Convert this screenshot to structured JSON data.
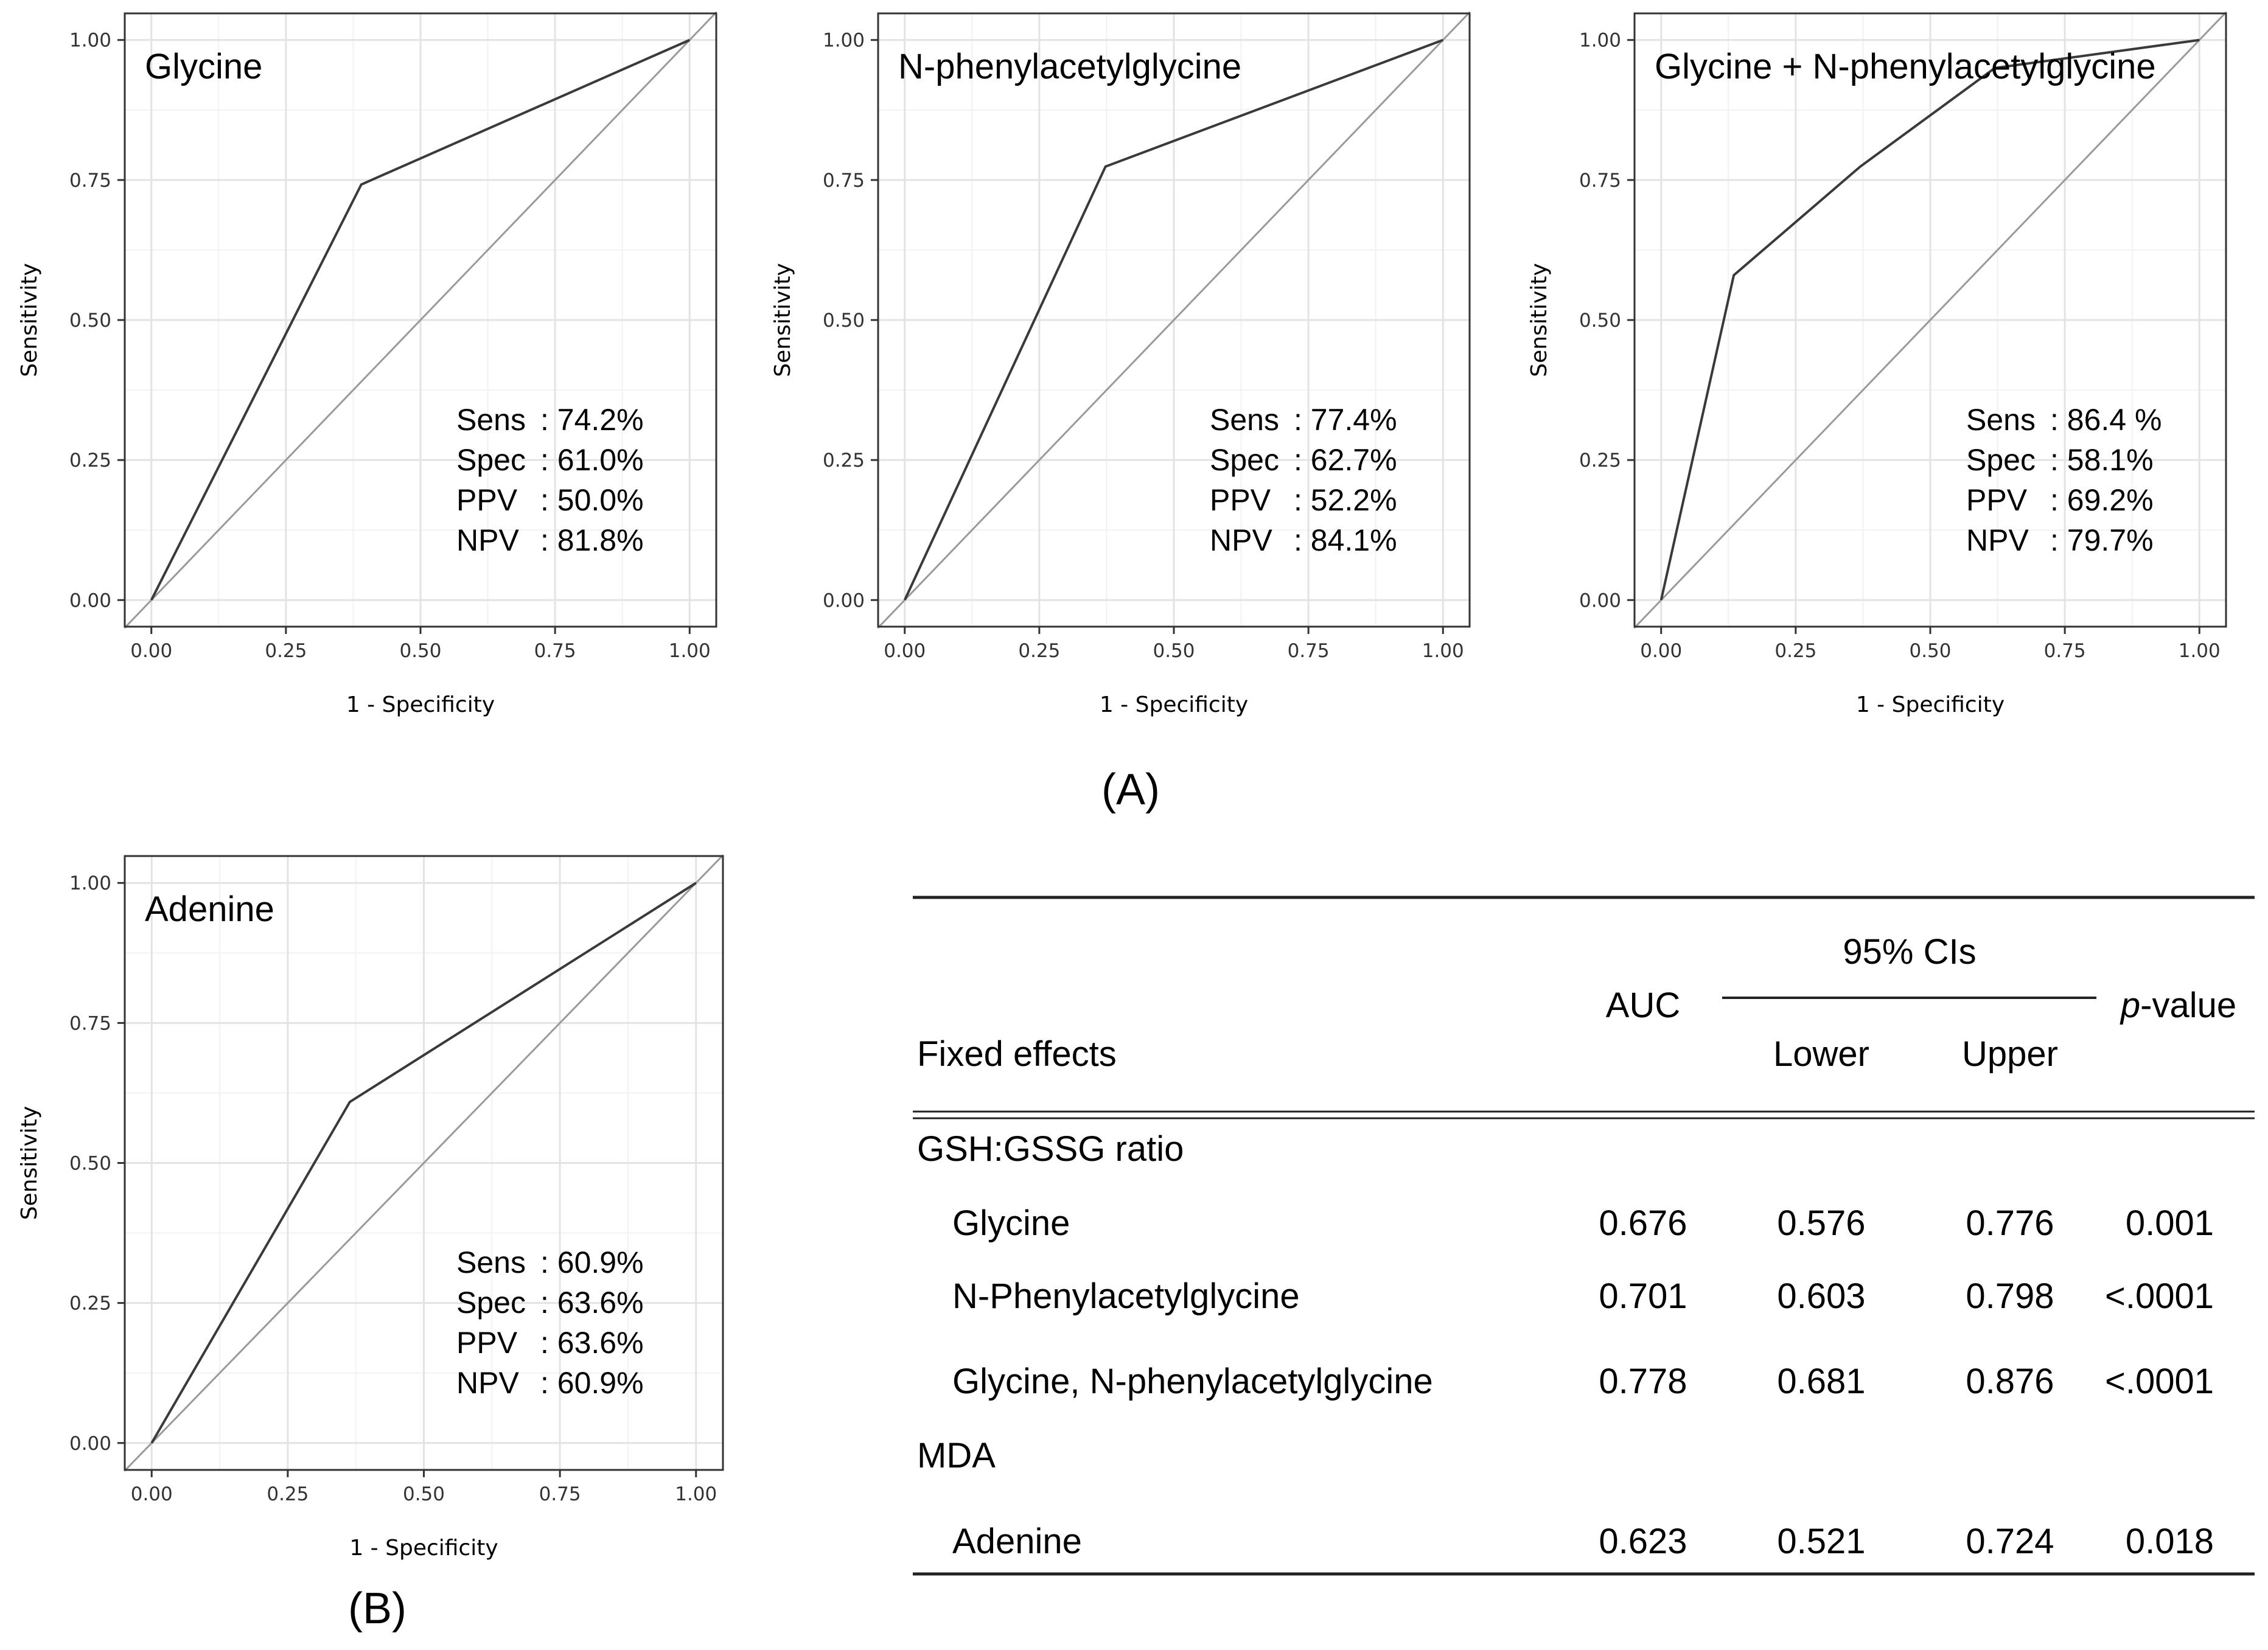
{
  "panel_labels": {
    "a": "(A)",
    "b": "(B)"
  },
  "axis": {
    "xlabel": "1 - Specificity",
    "ylabel": "Sensitivity",
    "ticks": [
      0,
      0.25,
      0.5,
      0.75,
      1
    ],
    "tick_labels": [
      "0.00",
      "0.25",
      "0.50",
      "0.75",
      "1.00"
    ]
  },
  "stat_labels": {
    "sens": "Sens",
    "spec": "Spec",
    "ppv": "PPV",
    "npv": "NPV"
  },
  "chart_data": [
    {
      "type": "line",
      "title": "Glycine",
      "xlabel": "1 - Specificity",
      "ylabel": "Sensitivity",
      "xlim": [
        0,
        1
      ],
      "ylim": [
        0,
        1
      ],
      "roc_x": [
        0,
        0.39,
        1
      ],
      "roc_y": [
        0,
        0.742,
        1
      ],
      "reference_line": [
        [
          -0.05,
          -0.05
        ],
        [
          1.05,
          1.05
        ]
      ],
      "stats": {
        "sens": ": 74.2%",
        "spec": ": 61.0%",
        "ppv": ":  50.0%",
        "npv": ":  81.8%"
      }
    },
    {
      "type": "line",
      "title": "N-phenylacetylglycine",
      "xlabel": "1 - Specificity",
      "ylabel": "Sensitivity",
      "xlim": [
        0,
        1
      ],
      "ylim": [
        0,
        1
      ],
      "roc_x": [
        0,
        0.373,
        1
      ],
      "roc_y": [
        0,
        0.774,
        1
      ],
      "reference_line": [
        [
          -0.05,
          -0.05
        ],
        [
          1.05,
          1.05
        ]
      ],
      "stats": {
        "sens": ": 77.4%",
        "spec": ": 62.7%",
        "ppv": ":  52.2%",
        "npv": ":  84.1%"
      }
    },
    {
      "type": "line",
      "title": "Glycine + N-phenylacetylglycine",
      "xlabel": "1 - Specificity",
      "ylabel": "Sensitivity",
      "xlim": [
        0,
        1
      ],
      "ylim": [
        0,
        1
      ],
      "roc_x": [
        0,
        0.135,
        0.37,
        0.62,
        1
      ],
      "roc_y": [
        0,
        0.58,
        0.774,
        0.95,
        1
      ],
      "reference_line": [
        [
          -0.05,
          -0.05
        ],
        [
          1.05,
          1.05
        ]
      ],
      "stats": {
        "sens": ": 86.4 %",
        "spec": ": 58.1%",
        "ppv": ":  69.2%",
        "npv": ":  79.7%"
      }
    },
    {
      "type": "line",
      "title": "Adenine",
      "xlabel": "1 - Specificity",
      "ylabel": "Sensitivity",
      "xlim": [
        0,
        1
      ],
      "ylim": [
        0,
        1
      ],
      "roc_x": [
        0,
        0.364,
        1
      ],
      "roc_y": [
        0,
        0.609,
        1
      ],
      "reference_line": [
        [
          -0.05,
          -0.05
        ],
        [
          1.05,
          1.05
        ]
      ],
      "stats": {
        "sens": ": 60.9%",
        "spec": ": 63.6%",
        "ppv": ":  63.6%",
        "npv": ":  60.9%"
      }
    },
    {
      "type": "table",
      "headers": {
        "fixed_effects": "Fixed effects",
        "auc": "AUC",
        "ci": "95% CIs",
        "lower": "Lower",
        "upper": "Upper",
        "p_italic": "p",
        "p_rest": "-value"
      },
      "groups": [
        {
          "name": "GSH:GSSG ratio",
          "rows": [
            {
              "label": "Glycine",
              "auc": "0.676",
              "lower": "0.576",
              "upper": "0.776",
              "p": "0.001"
            },
            {
              "label": "N-Phenylacetylglycine",
              "auc": "0.701",
              "lower": "0.603",
              "upper": "0.798",
              "p": "<.0001"
            },
            {
              "label": "Glycine, N-phenylacetylglycine",
              "auc": "0.778",
              "lower": "0.681",
              "upper": "0.876",
              "p": "<.0001"
            }
          ]
        },
        {
          "name": "MDA",
          "rows": [
            {
              "label": "Adenine",
              "auc": "0.623",
              "lower": "0.521",
              "upper": "0.724",
              "p": "0.018"
            }
          ]
        }
      ]
    }
  ]
}
